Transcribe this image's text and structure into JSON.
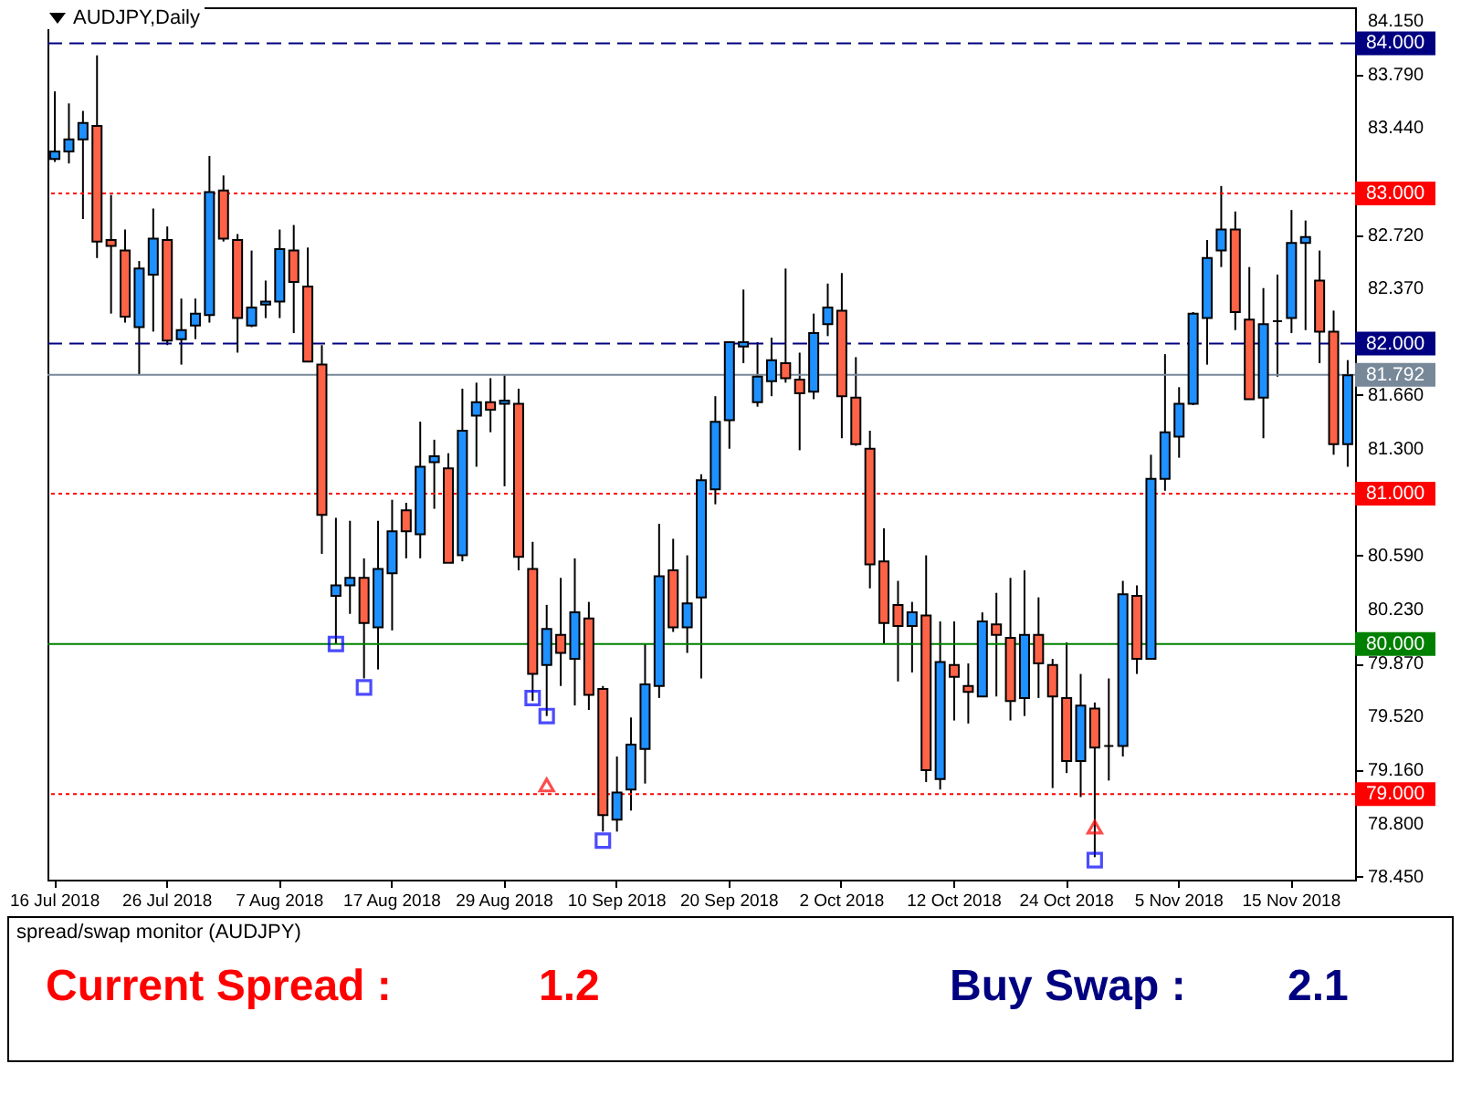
{
  "chart_data": [
    {
      "type": "candlestick",
      "title": "AUDJPY,Daily",
      "categories": [
        "16 Jul 2018",
        null,
        null,
        null,
        null,
        null,
        null,
        null,
        "26 Jul 2018",
        null,
        null,
        null,
        null,
        null,
        null,
        null,
        "7 Aug 2018",
        null,
        null,
        null,
        null,
        null,
        null,
        null,
        "17 Aug 2018",
        null,
        null,
        null,
        null,
        null,
        null,
        null,
        "29 Aug 2018",
        null,
        null,
        null,
        null,
        null,
        null,
        null,
        "10 Sep 2018",
        null,
        null,
        null,
        null,
        null,
        null,
        null,
        "20 Sep 2018",
        null,
        null,
        null,
        null,
        null,
        null,
        null,
        "2 Oct 2018",
        null,
        null,
        null,
        null,
        null,
        null,
        null,
        "12 Oct 2018",
        null,
        null,
        null,
        null,
        null,
        null,
        null,
        "24 Oct 2018",
        null,
        null,
        null,
        null,
        null,
        null,
        null,
        "5 Nov 2018",
        null,
        null,
        null,
        null,
        null,
        null,
        null,
        "15 Nov 2018",
        null,
        null,
        null,
        null
      ],
      "ohlc": [
        [
          83.23,
          83.68,
          83.21,
          83.28
        ],
        [
          83.28,
          83.6,
          83.2,
          83.36
        ],
        [
          83.36,
          83.55,
          82.83,
          83.47
        ],
        [
          83.45,
          83.92,
          82.57,
          82.68
        ],
        [
          82.69,
          82.99,
          82.2,
          82.65
        ],
        [
          82.62,
          82.76,
          82.14,
          82.18
        ],
        [
          82.11,
          82.55,
          81.79,
          82.5
        ],
        [
          82.46,
          82.9,
          82.08,
          82.7
        ],
        [
          82.69,
          82.78,
          81.99,
          82.02
        ],
        [
          82.03,
          82.3,
          81.86,
          82.09
        ],
        [
          82.12,
          82.3,
          82.03,
          82.2
        ],
        [
          82.19,
          83.25,
          82.14,
          83.01
        ],
        [
          83.02,
          83.12,
          82.68,
          82.7
        ],
        [
          82.69,
          82.73,
          81.94,
          82.17
        ],
        [
          82.12,
          82.62,
          82.11,
          82.24
        ],
        [
          82.26,
          82.42,
          82.17,
          82.28
        ],
        [
          82.28,
          82.76,
          82.17,
          82.63
        ],
        [
          82.62,
          82.79,
          82.07,
          82.41
        ],
        [
          82.38,
          82.64,
          81.88,
          81.88
        ],
        [
          81.86,
          81.99,
          80.6,
          80.86
        ],
        [
          80.32,
          80.84,
          80.0,
          80.39
        ],
        [
          80.39,
          80.82,
          80.2,
          80.44
        ],
        [
          80.44,
          80.57,
          79.77,
          80.14
        ],
        [
          80.11,
          80.82,
          79.83,
          80.5
        ],
        [
          80.47,
          80.96,
          80.09,
          80.75
        ],
        [
          80.89,
          80.94,
          80.57,
          80.75
        ],
        [
          80.73,
          81.48,
          80.57,
          81.18
        ],
        [
          81.21,
          81.36,
          80.9,
          81.25
        ],
        [
          81.17,
          81.27,
          80.54,
          80.54
        ],
        [
          80.59,
          81.7,
          80.55,
          81.42
        ],
        [
          81.52,
          81.74,
          81.18,
          81.61
        ],
        [
          81.61,
          81.77,
          81.41,
          81.56
        ],
        [
          81.6,
          81.79,
          81.05,
          81.62
        ],
        [
          81.6,
          81.7,
          80.49,
          80.58
        ],
        [
          80.5,
          80.68,
          79.62,
          79.8
        ],
        [
          79.86,
          80.26,
          79.52,
          80.1
        ],
        [
          80.06,
          80.44,
          79.72,
          79.94
        ],
        [
          79.9,
          80.57,
          79.59,
          80.21
        ],
        [
          80.17,
          80.28,
          79.56,
          79.66
        ],
        [
          79.7,
          79.72,
          78.75,
          78.86
        ],
        [
          78.83,
          79.25,
          78.75,
          79.01
        ],
        [
          79.03,
          79.51,
          78.89,
          79.33
        ],
        [
          79.3,
          80.0,
          79.07,
          79.73
        ],
        [
          79.72,
          80.8,
          79.64,
          80.45
        ],
        [
          80.49,
          80.7,
          80.08,
          80.11
        ],
        [
          80.11,
          80.59,
          79.94,
          80.27
        ],
        [
          80.31,
          81.13,
          79.77,
          81.09
        ],
        [
          81.03,
          81.65,
          80.93,
          81.48
        ],
        [
          81.49,
          82.01,
          81.3,
          82.01
        ],
        [
          81.98,
          82.36,
          81.87,
          82.01
        ],
        [
          81.61,
          82.01,
          81.58,
          81.78
        ],
        [
          81.75,
          82.04,
          81.65,
          81.89
        ],
        [
          81.87,
          82.5,
          81.74,
          81.77
        ],
        [
          81.76,
          81.94,
          81.29,
          81.67
        ],
        [
          81.68,
          82.2,
          81.63,
          82.07
        ],
        [
          82.13,
          82.4,
          82.05,
          82.24
        ],
        [
          82.22,
          82.47,
          81.37,
          81.65
        ],
        [
          81.64,
          81.91,
          81.32,
          81.33
        ],
        [
          81.3,
          81.42,
          80.37,
          80.53
        ],
        [
          80.55,
          80.77,
          80.0,
          80.14
        ],
        [
          80.26,
          80.42,
          79.75,
          80.12
        ],
        [
          80.12,
          80.28,
          79.81,
          80.21
        ],
        [
          80.19,
          80.59,
          79.08,
          79.16
        ],
        [
          79.1,
          80.15,
          79.03,
          79.88
        ],
        [
          79.86,
          80.15,
          79.49,
          79.78
        ],
        [
          79.72,
          79.87,
          79.47,
          79.68
        ],
        [
          79.65,
          80.21,
          79.65,
          80.15
        ],
        [
          80.13,
          80.34,
          79.65,
          80.06
        ],
        [
          80.04,
          80.44,
          79.49,
          79.62
        ],
        [
          79.64,
          80.49,
          79.52,
          80.06
        ],
        [
          80.06,
          80.31,
          79.64,
          79.87
        ],
        [
          79.86,
          79.9,
          79.04,
          79.65
        ],
        [
          79.64,
          80.01,
          79.14,
          79.22
        ],
        [
          79.22,
          79.8,
          78.98,
          79.59
        ],
        [
          79.57,
          79.61,
          78.58,
          79.31
        ],
        [
          79.32,
          79.77,
          79.09,
          79.32
        ],
        [
          79.32,
          80.42,
          79.25,
          80.33
        ],
        [
          80.32,
          80.39,
          79.8,
          79.9
        ],
        [
          79.9,
          81.26,
          79.9,
          81.1
        ],
        [
          81.1,
          81.93,
          81.02,
          81.41
        ],
        [
          81.38,
          81.71,
          81.24,
          81.6
        ],
        [
          81.6,
          82.21,
          81.59,
          82.2
        ],
        [
          82.17,
          82.69,
          81.86,
          82.57
        ],
        [
          82.62,
          83.05,
          82.51,
          82.76
        ],
        [
          82.76,
          82.88,
          82.09,
          82.21
        ],
        [
          82.16,
          82.51,
          81.63,
          81.63
        ],
        [
          81.64,
          82.37,
          81.37,
          82.13
        ],
        [
          82.15,
          82.46,
          81.78,
          82.15
        ],
        [
          82.17,
          82.89,
          82.07,
          82.67
        ],
        [
          82.67,
          82.82,
          82.09,
          82.71
        ],
        [
          82.42,
          82.62,
          81.87,
          82.08
        ],
        [
          82.08,
          82.22,
          81.26,
          81.33
        ],
        [
          81.33,
          81.89,
          81.18,
          81.79
        ]
      ],
      "colors": [
        "#1e90ff",
        "#1e90ff",
        "#1e90ff",
        "#ff6347",
        "#ff6347",
        "#ff6347",
        "#1e90ff",
        "#1e90ff",
        "#ff6347",
        "#1e90ff",
        "#1e90ff",
        "#1e90ff",
        "#ff6347",
        "#ff6347",
        "#1e90ff",
        "#1e90ff",
        "#1e90ff",
        "#ff6347",
        "#ff6347",
        "#ff6347",
        "#1e90ff",
        "#1e90ff",
        "#ff6347",
        "#1e90ff",
        "#1e90ff",
        "#ff6347",
        "#1e90ff",
        "#1e90ff",
        "#ff6347",
        "#1e90ff",
        "#1e90ff",
        "#ff6347",
        "#1e90ff",
        "#ff6347",
        "#ff6347",
        "#1e90ff",
        "#ff6347",
        "#1e90ff",
        "#ff6347",
        "#ff6347",
        "#1e90ff",
        "#1e90ff",
        "#1e90ff",
        "#1e90ff",
        "#ff6347",
        "#1e90ff",
        "#1e90ff",
        "#1e90ff",
        "#1e90ff",
        "#1e90ff",
        "#1e90ff",
        "#1e90ff",
        "#ff6347",
        "#ff6347",
        "#1e90ff",
        "#1e90ff",
        "#ff6347",
        "#ff6347",
        "#ff6347",
        "#ff6347",
        "#ff6347",
        "#1e90ff",
        "#ff6347",
        "#1e90ff",
        "#ff6347",
        "#ff6347",
        "#1e90ff",
        "#ff6347",
        "#ff6347",
        "#1e90ff",
        "#ff6347",
        "#ff6347",
        "#ff6347",
        "#1e90ff",
        "#ff6347",
        "#000000",
        "#1e90ff",
        "#ff6347",
        "#1e90ff",
        "#1e90ff",
        "#1e90ff",
        "#1e90ff",
        "#1e90ff",
        "#1e90ff",
        "#ff6347",
        "#ff6347",
        "#1e90ff",
        "#000000",
        "#1e90ff",
        "#1e90ff",
        "#ff6347",
        "#ff6347",
        "#1e90ff"
      ],
      "series": [
        {
          "type": "scatter",
          "marker": "square",
          "color": "#0000ff",
          "values": [
            null,
            null,
            null,
            null,
            null,
            null,
            null,
            null,
            null,
            null,
            null,
            null,
            null,
            null,
            null,
            null,
            null,
            null,
            null,
            null,
            80.0,
            null,
            79.71,
            null,
            null,
            null,
            null,
            null,
            null,
            null,
            null,
            null,
            null,
            null,
            79.64,
            79.52,
            null,
            null,
            null,
            78.69,
            null,
            null,
            null,
            null,
            null,
            null,
            null,
            null,
            null,
            null,
            null,
            null,
            null,
            null,
            null,
            null,
            null,
            null,
            null,
            null,
            null,
            null,
            null,
            null,
            null,
            null,
            null,
            null,
            null,
            null,
            null,
            null,
            null,
            null,
            78.56,
            null,
            null,
            null,
            null,
            null,
            null,
            null,
            null,
            null,
            null,
            null,
            null,
            null,
            null,
            null,
            null,
            null,
            null
          ]
        },
        {
          "type": "scatter",
          "marker": "triangle",
          "color": "#ff0000",
          "values": [
            null,
            null,
            null,
            null,
            null,
            null,
            null,
            null,
            null,
            null,
            null,
            null,
            null,
            null,
            null,
            null,
            null,
            null,
            null,
            null,
            null,
            null,
            null,
            null,
            null,
            null,
            null,
            null,
            null,
            null,
            null,
            null,
            null,
            null,
            null,
            79.06,
            null,
            null,
            null,
            null,
            null,
            null,
            null,
            null,
            null,
            null,
            null,
            null,
            null,
            null,
            null,
            null,
            null,
            null,
            null,
            null,
            null,
            null,
            null,
            null,
            null,
            null,
            null,
            null,
            null,
            null,
            null,
            null,
            null,
            null,
            null,
            null,
            null,
            null,
            78.78,
            null,
            null,
            null,
            null,
            null,
            null,
            null,
            null,
            null,
            null,
            null,
            null,
            null,
            null,
            null,
            null,
            null,
            null
          ]
        }
      ],
      "ylim": [
        78.43,
        84.24
      ],
      "yticks": [
        {
          "value": 78.45,
          "label": "78.450"
        },
        {
          "value": 78.8,
          "label": "78.800"
        },
        {
          "value": 79.16,
          "label": "79.160"
        },
        {
          "value": 79.52,
          "label": "79.520"
        },
        {
          "value": 79.87,
          "label": "79.870"
        },
        {
          "value": 80.23,
          "label": "80.230"
        },
        {
          "value": 80.59,
          "label": "80.590"
        },
        {
          "value": 81.3,
          "label": "81.300"
        },
        {
          "value": 81.66,
          "label": "81.660"
        },
        {
          "value": 82.37,
          "label": "82.370"
        },
        {
          "value": 82.72,
          "label": "82.720"
        },
        {
          "value": 83.44,
          "label": "83.440"
        },
        {
          "value": 83.79,
          "label": "83.790"
        },
        {
          "value": 84.15,
          "label": "84.150"
        }
      ],
      "ref_lines": [
        {
          "axis": "y",
          "value": 84,
          "label": "84.000",
          "color": "#000080",
          "line_style": "dashed"
        },
        {
          "axis": "y",
          "value": 83,
          "label": "83.000",
          "color": "#ff0000",
          "line_style": "dotted"
        },
        {
          "axis": "y",
          "value": 82,
          "label": "82.000",
          "color": "#000080",
          "line_style": "dashed"
        },
        {
          "axis": "y",
          "value": 81.792,
          "label": "81.792",
          "color": "#778899",
          "line_style": "solid"
        },
        {
          "axis": "y",
          "value": 81,
          "label": "81.000",
          "color": "#ff0000",
          "line_style": "dotted"
        },
        {
          "axis": "y",
          "value": 80,
          "label": "80.000",
          "color": "#008000",
          "line_style": "solid"
        },
        {
          "axis": "y",
          "value": 79,
          "label": "79.000",
          "color": "#ff0000",
          "line_style": "dotted"
        }
      ]
    },
    {
      "type": "other",
      "title": "spread/swap monitor (AUDJPY)",
      "annotations": [
        "Current Spread :",
        "1.2",
        "Buy Swap :",
        "2.1"
      ]
    }
  ]
}
